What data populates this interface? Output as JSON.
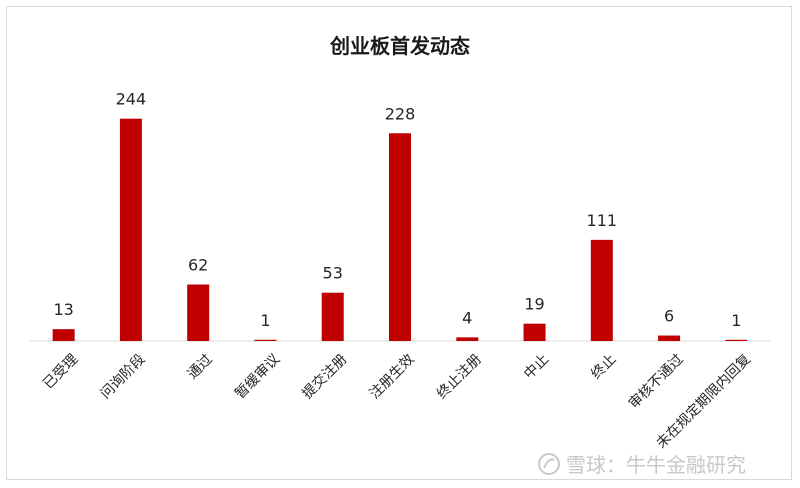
{
  "chart_data": {
    "type": "bar",
    "title": "创业板首发动态",
    "categories": [
      "已受理",
      "问询阶段",
      "通过",
      "暂缓审议",
      "提交注册",
      "注册生效",
      "终止注册",
      "中止",
      "终止",
      "审核不通过",
      "未在规定期限内回复"
    ],
    "values": [
      13,
      244,
      62,
      1,
      53,
      228,
      4,
      19,
      111,
      6,
      1
    ],
    "ylim": [
      0,
      270
    ],
    "grid": false,
    "legend": "none",
    "bar_color": "#c00000",
    "xlabel": "",
    "ylabel": ""
  },
  "watermark": {
    "text": "雪球：牛牛金融研究",
    "icon": "snowball-logo-icon"
  }
}
